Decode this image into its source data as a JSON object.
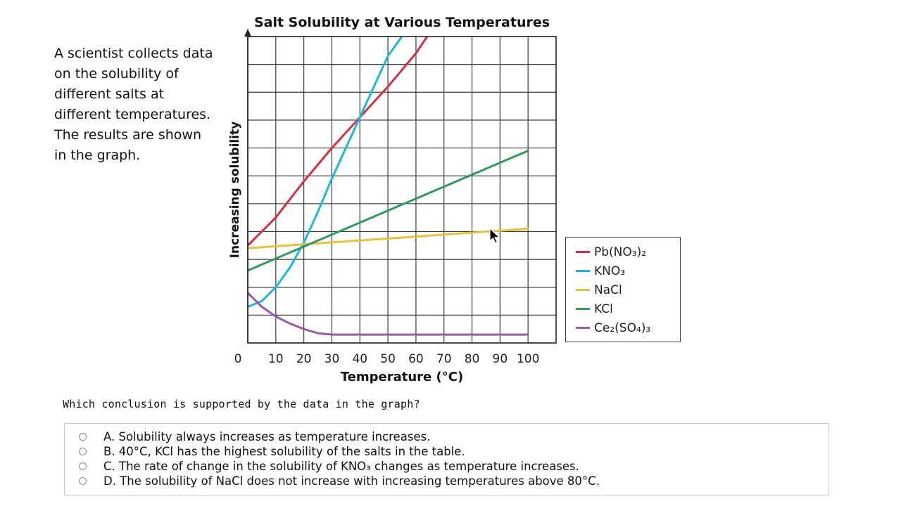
{
  "intro": {
    "lines": [
      "A scientist collects data",
      "on the solubility of",
      "different salts at",
      "different temperatures.",
      "The results are shown",
      "in the graph."
    ]
  },
  "chart_data": {
    "type": "line",
    "title": "Salt Solubility at Various Temperatures",
    "xlabel": "Temperature (°C)",
    "ylabel": "Increasing solubility",
    "xlim": [
      0,
      110
    ],
    "ylim": [
      0,
      11
    ],
    "x_ticks": [
      0,
      10,
      20,
      30,
      40,
      50,
      60,
      70,
      80,
      90,
      100
    ],
    "x_tick_labels": [
      "0",
      "10",
      "20",
      "30",
      "40",
      "50",
      "60",
      "70",
      "80",
      "90",
      "100"
    ],
    "grid": true,
    "y_tick_labels": false,
    "legend_position": "right",
    "series": [
      {
        "name": "Pb(NO₃)₂",
        "color": "#d62e3e",
        "x": [
          0,
          10,
          20,
          30,
          40,
          50,
          60,
          64
        ],
        "y": [
          3.5,
          4.5,
          5.8,
          7.0,
          8.1,
          9.2,
          10.4,
          11.0
        ]
      },
      {
        "name": "KNO₃",
        "color": "#1fb3e0",
        "x": [
          0,
          5,
          10,
          15,
          20,
          25,
          30,
          35,
          40,
          45,
          50,
          55
        ],
        "y": [
          1.3,
          1.5,
          2.0,
          2.7,
          3.6,
          4.7,
          5.9,
          7.0,
          8.1,
          9.2,
          10.3,
          11.0
        ]
      },
      {
        "name": "NaCl",
        "color": "#e8c039",
        "x": [
          0,
          100
        ],
        "y": [
          3.4,
          4.1
        ]
      },
      {
        "name": "KCl",
        "color": "#2e9a5c",
        "x": [
          0,
          100
        ],
        "y": [
          2.6,
          6.9
        ]
      },
      {
        "name": "Ce₂(SO₄)₃",
        "color": "#9a5aa8",
        "x": [
          0,
          5,
          10,
          15,
          20,
          25,
          30,
          40,
          60,
          80,
          100
        ],
        "y": [
          1.8,
          1.3,
          0.95,
          0.7,
          0.5,
          0.35,
          0.3,
          0.3,
          0.3,
          0.3,
          0.3
        ]
      }
    ]
  },
  "legend": {
    "items": [
      {
        "label": "Pb(NO₃)₂",
        "color": "#d62e3e"
      },
      {
        "label": "KNO₃",
        "color": "#1fb3e0"
      },
      {
        "label": "NaCl",
        "color": "#e8c039"
      },
      {
        "label": "KCl",
        "color": "#2e9a5c"
      },
      {
        "label": "Ce₂(SO₄)₃",
        "color": "#9a5aa8"
      }
    ]
  },
  "question": {
    "prompt": "Which conclusion is supported by the data in the graph?",
    "options": [
      {
        "text": "A. Solubility always increases as temperature increases."
      },
      {
        "text": "B. 40°C, KCl has the highest solubility of the salts in the table."
      },
      {
        "text": "C. The rate of change in the solubility of KNO₃ changes as temperature increases."
      },
      {
        "text": "D. The solubility of NaCl does not increase with increasing temperatures above 80°C."
      }
    ]
  },
  "icons": {
    "cursor": "mouse-pointer-icon",
    "radio": "radio-button-icon"
  }
}
